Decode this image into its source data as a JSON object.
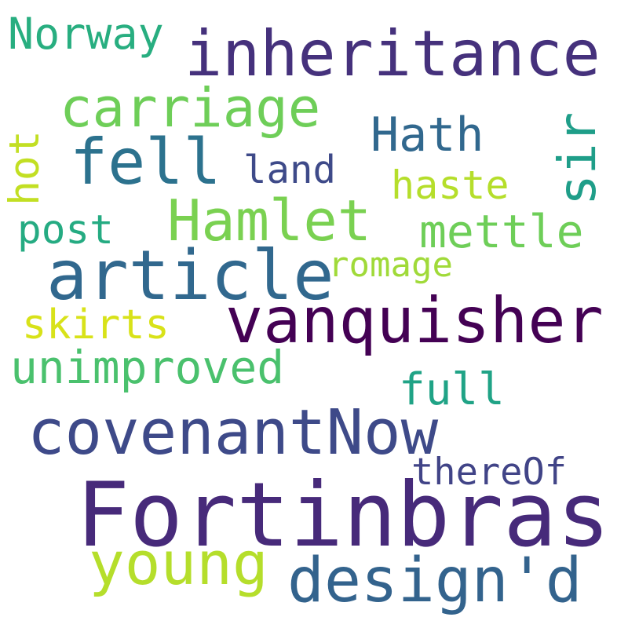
{
  "words": [
    {
      "text": "Fortinbras",
      "color": "#472a7a"
    },
    {
      "text": "vanquisher",
      "color": "#440154"
    },
    {
      "text": "inheritance",
      "color": "#45317c"
    },
    {
      "text": "covenantNow",
      "color": "#3e4a89"
    },
    {
      "text": "article",
      "color": "#31688e"
    },
    {
      "text": "design'd",
      "color": "#33638d"
    },
    {
      "text": "Hamlet",
      "color": "#7ad151"
    },
    {
      "text": "fell",
      "color": "#2c728e"
    },
    {
      "text": "carriage",
      "color": "#6ece58"
    },
    {
      "text": "young",
      "color": "#b5de2b"
    },
    {
      "text": "unimproved",
      "color": "#4ac16d"
    },
    {
      "text": "mettle",
      "color": "#6ece58"
    },
    {
      "text": "Norway",
      "color": "#28ae80"
    },
    {
      "text": "skirts",
      "color": "#d8e219"
    },
    {
      "text": "Hath",
      "color": "#31688e"
    },
    {
      "text": "full",
      "color": "#20a386"
    },
    {
      "text": "thereOf",
      "color": "#414487"
    },
    {
      "text": "post",
      "color": "#25ab82"
    },
    {
      "text": "land",
      "color": "#3e4a89"
    },
    {
      "text": "haste",
      "color": "#b5de2b"
    },
    {
      "text": "romage",
      "color": "#a0da39"
    },
    {
      "text": "hot",
      "color": "#c2df23"
    },
    {
      "text": "sir",
      "color": "#1f9e89"
    }
  ]
}
